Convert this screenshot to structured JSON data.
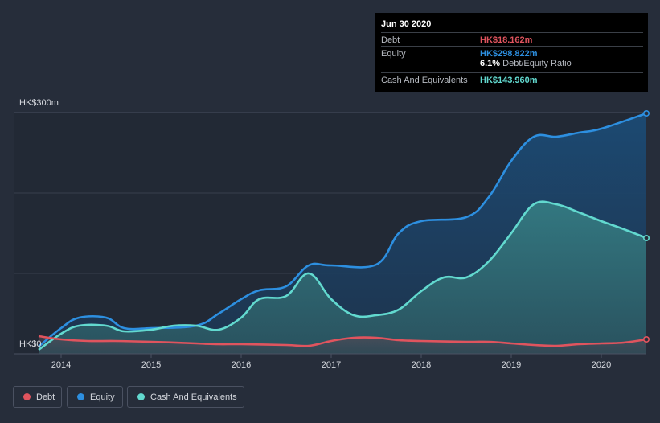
{
  "chart_data": {
    "type": "area",
    "currency_unit": "HK$ m",
    "ylim": [
      0,
      300
    ],
    "xlim": [
      2013.75,
      2020.5
    ],
    "y_tick_labels": [
      "HK$300m",
      "HK$0"
    ],
    "x_tick_labels": [
      "2014",
      "2015",
      "2016",
      "2017",
      "2018",
      "2019",
      "2020"
    ],
    "x_ticks": [
      2014,
      2015,
      2016,
      2017,
      2018,
      2019,
      2020
    ],
    "grid": true,
    "series": [
      {
        "name": "Equity",
        "color": "#2d8fe0",
        "x": [
          2013.75,
          2014.0,
          2014.2,
          2014.5,
          2014.7,
          2015.0,
          2015.5,
          2015.75,
          2016.0,
          2016.2,
          2016.5,
          2016.75,
          2017.0,
          2017.5,
          2017.75,
          2018.0,
          2018.5,
          2018.75,
          2019.0,
          2019.25,
          2019.5,
          2019.75,
          2020.0,
          2020.5
        ],
        "values": [
          9,
          32,
          45,
          45,
          32,
          32,
          35,
          50,
          68,
          79,
          84,
          110,
          110,
          111,
          150,
          165,
          170,
          195,
          240,
          270,
          270,
          275,
          280,
          299
        ]
      },
      {
        "name": "Cash And Equivalents",
        "color": "#62d9cf",
        "x": [
          2013.75,
          2014.0,
          2014.2,
          2014.5,
          2014.7,
          2015.0,
          2015.25,
          2015.5,
          2015.75,
          2016.0,
          2016.2,
          2016.5,
          2016.75,
          2017.0,
          2017.25,
          2017.5,
          2017.75,
          2018.0,
          2018.25,
          2018.5,
          2018.75,
          2019.0,
          2019.25,
          2019.5,
          2019.75,
          2020.0,
          2020.25,
          2020.5
        ],
        "values": [
          5,
          25,
          35,
          35,
          28,
          30,
          35,
          35,
          30,
          45,
          68,
          72,
          100,
          68,
          48,
          48,
          55,
          78,
          95,
          95,
          115,
          150,
          186,
          186,
          176,
          165,
          155,
          144
        ]
      },
      {
        "name": "Debt",
        "color": "#e0545e",
        "x": [
          2013.75,
          2014.0,
          2014.3,
          2014.6,
          2015.0,
          2015.5,
          2015.75,
          2016.0,
          2016.5,
          2016.75,
          2017.0,
          2017.25,
          2017.5,
          2017.75,
          2018.0,
          2018.5,
          2018.75,
          2019.0,
          2019.25,
          2019.5,
          2019.75,
          2020.0,
          2020.25,
          2020.5
        ],
        "values": [
          22,
          18,
          16,
          16,
          15,
          13,
          12,
          12,
          11,
          10,
          16,
          20,
          20,
          17,
          16,
          15,
          15,
          13,
          11,
          10,
          12,
          13,
          14,
          18
        ]
      }
    ]
  },
  "tooltip": {
    "date": "Jun 30 2020",
    "rows": [
      {
        "label": "Debt",
        "value": "HK$18.162m",
        "color": "#e0545e"
      },
      {
        "label": "Equity",
        "value": "HK$298.822m",
        "color": "#2d8fe0"
      },
      {
        "label": "Cash And Equivalents",
        "value": "HK$143.960m",
        "color": "#62d9cf"
      }
    ],
    "ratio_value": "6.1%",
    "ratio_label": "Debt/Equity Ratio"
  },
  "legend": [
    {
      "label": "Debt",
      "color": "#e0545e"
    },
    {
      "label": "Equity",
      "color": "#2d8fe0"
    },
    {
      "label": "Cash And Equivalents",
      "color": "#62d9cf"
    }
  ]
}
